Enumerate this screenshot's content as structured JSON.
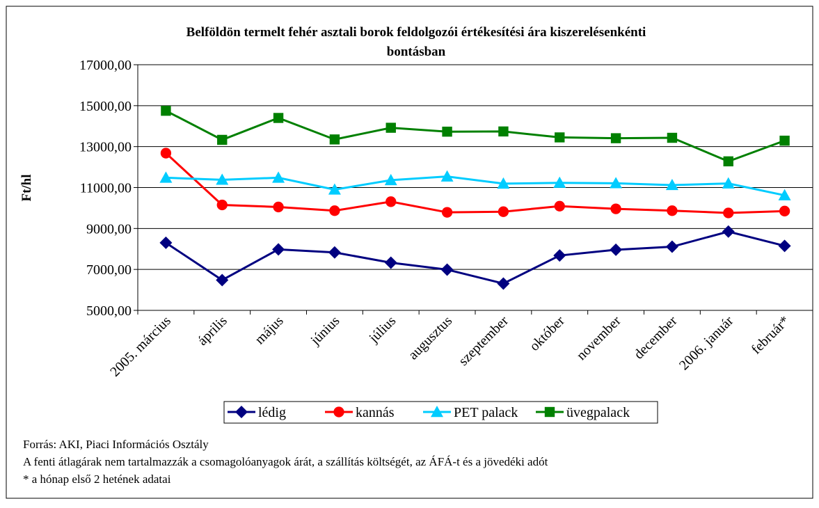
{
  "chart_data": {
    "type": "line",
    "title": "Belföldön termelt fehér asztali borok feldolgozói értékesítési ára kiszerelésenkénti bontásban",
    "y_label": "Ft/hl",
    "categories": [
      "2005. március",
      "április",
      "május",
      "június",
      "július",
      "augusztus",
      "szeptember",
      "október",
      "november",
      "december",
      "2006. január",
      "február*"
    ],
    "series": [
      {
        "name": "lédig",
        "color": "#000080",
        "marker": "diamond",
        "values": [
          8300,
          6480,
          7980,
          7830,
          7330,
          6990,
          6310,
          7680,
          7960,
          8110,
          8850,
          8150
        ]
      },
      {
        "name": "kannás",
        "color": "#ff0000",
        "marker": "circle",
        "values": [
          12680,
          10150,
          10050,
          9870,
          10310,
          9790,
          9820,
          10090,
          9960,
          9870,
          9760,
          9850
        ]
      },
      {
        "name": "PET palack",
        "color": "#00ccff",
        "marker": "triangle",
        "values": [
          11480,
          11380,
          11480,
          10900,
          11360,
          11540,
          11190,
          11230,
          11210,
          11120,
          11200,
          10620
        ]
      },
      {
        "name": "üvegpalack",
        "color": "#008000",
        "marker": "square",
        "values": [
          14750,
          13330,
          14400,
          13350,
          13920,
          13730,
          13740,
          13450,
          13410,
          13430,
          12280,
          13290
        ]
      }
    ],
    "ylim": [
      5000,
      17000
    ],
    "yticks": [
      {
        "value": 5000,
        "label": "5000,00"
      },
      {
        "value": 7000,
        "label": "7000,00"
      },
      {
        "value": 9000,
        "label": "9000,00"
      },
      {
        "value": 11000,
        "label": "11000,00"
      },
      {
        "value": 13000,
        "label": "13000,00"
      },
      {
        "value": 15000,
        "label": "15000,00"
      },
      {
        "value": 17000,
        "label": "17000,00"
      }
    ],
    "grid": true,
    "legend": "bottom",
    "notes": [
      "Forrás: AKI, Piaci Információs Osztály",
      "A fenti átlagárak nem tartalmazzák a csomagolóanyagok árát, a szállítás költségét, az ÁFÁ-t és a jövedéki adót",
      "* a hónap első 2 hetének adatai"
    ]
  }
}
